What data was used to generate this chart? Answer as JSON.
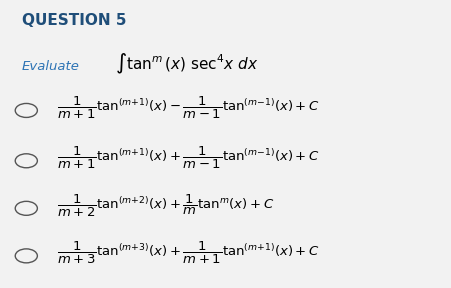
{
  "title": "QUESTION 5",
  "title_color": "#1F4E79",
  "title_fontsize": 11,
  "bg_color": "#F2F2F2",
  "evaluate_label": "Evaluate",
  "integral_expr": "$\\int \\tan^{m}(x) \\sec^{4}x\\, dx$",
  "options": [
    "$\\dfrac{1}{m+1}\\tan^{(m+1)}(x) - \\dfrac{1}{m-1}\\tan^{(m-1)}(x) + C$",
    "$\\dfrac{1}{m+1}\\tan^{(m+1)}(x) + \\dfrac{1}{m-1}\\tan^{(m-1)}(x) + C$",
    "$\\dfrac{1}{m+2}\\tan^{(m+2)}(x) + \\dfrac{1}{m}\\tan^{m}(x) + C$",
    "$\\dfrac{1}{m+3}\\tan^{(m+3)}(x) + \\dfrac{1}{m+1}\\tan^{(m+1)}(x) + C$"
  ],
  "text_color": "#000000",
  "font_size_body": 10
}
